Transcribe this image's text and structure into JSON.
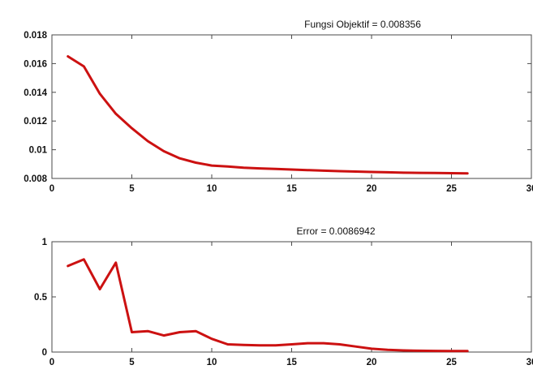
{
  "chart_data": [
    {
      "type": "line",
      "title": "Fungsi Objektif = 0.008356",
      "xlabel": "",
      "ylabel": "",
      "xlim": [
        0,
        30
      ],
      "ylim": [
        0.008,
        0.018
      ],
      "xticks": [
        0,
        5,
        10,
        15,
        20,
        25,
        30
      ],
      "xtick_labels": [
        "0",
        "5",
        "10",
        "15",
        "20",
        "25",
        "30"
      ],
      "yticks": [
        0.008,
        0.01,
        0.012,
        0.014,
        0.016,
        0.018
      ],
      "ytick_labels": [
        "0.008",
        "0.01",
        "0.012",
        "0.014",
        "0.016",
        "0.018"
      ],
      "grid": false,
      "series": [
        {
          "color": "#cc1111",
          "x": [
            1,
            2,
            3,
            4,
            5,
            6,
            7,
            8,
            9,
            10,
            11,
            12,
            13,
            14,
            15,
            16,
            17,
            18,
            19,
            20,
            21,
            22,
            23,
            24,
            25,
            26
          ],
          "y": [
            0.0165,
            0.0158,
            0.0139,
            0.0125,
            0.0115,
            0.0106,
            0.0099,
            0.0094,
            0.0091,
            0.0089,
            0.00883,
            0.00875,
            0.0087,
            0.00866,
            0.00862,
            0.00858,
            0.00854,
            0.00851,
            0.00848,
            0.00845,
            0.00843,
            0.0084,
            0.00839,
            0.00838,
            0.00837,
            0.008356
          ]
        }
      ]
    },
    {
      "type": "line",
      "title": "Error = 0.0086942",
      "xlabel": "",
      "ylabel": "",
      "xlim": [
        0,
        30
      ],
      "ylim": [
        0,
        1
      ],
      "xticks": [
        0,
        5,
        10,
        15,
        20,
        25,
        30
      ],
      "xtick_labels": [
        "0",
        "5",
        "10",
        "15",
        "20",
        "25",
        "30"
      ],
      "yticks": [
        0,
        0.5,
        1
      ],
      "ytick_labels": [
        "0",
        "0.5",
        "1"
      ],
      "grid": false,
      "series": [
        {
          "color": "#cc1111",
          "x": [
            1,
            2,
            3,
            4,
            5,
            6,
            7,
            8,
            9,
            10,
            11,
            12,
            13,
            14,
            15,
            16,
            17,
            18,
            19,
            20,
            21,
            22,
            23,
            24,
            25,
            26
          ],
          "y": [
            0.78,
            0.84,
            0.57,
            0.81,
            0.18,
            0.19,
            0.15,
            0.18,
            0.19,
            0.12,
            0.07,
            0.065,
            0.06,
            0.06,
            0.07,
            0.08,
            0.08,
            0.07,
            0.05,
            0.03,
            0.02,
            0.015,
            0.012,
            0.01,
            0.009,
            0.0086942
          ]
        }
      ]
    }
  ]
}
